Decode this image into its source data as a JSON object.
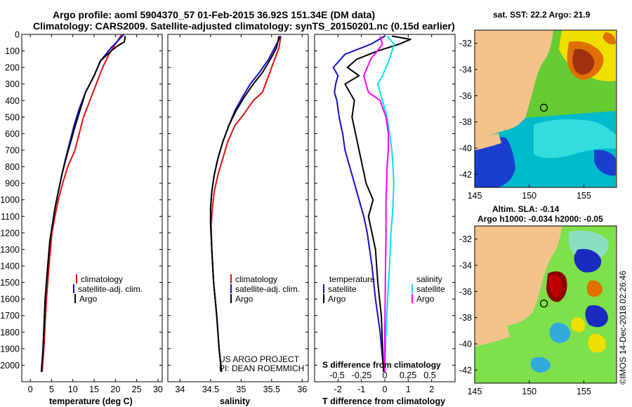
{
  "header": {
    "title1": "Argo profile: aoml 5904370_57 01-Feb-2015 36.92S 151.34E (DM data)",
    "title2": "Climatology: CARS2009. Satellite-adjusted climatology: synTS_20150201.nc (0.15d earlier)"
  },
  "colors": {
    "climatology": "#e01010",
    "satellite": "#1010d0",
    "argo": "#000000",
    "satellite_salinity": "#00e0f0",
    "argo_salinity": "#ff00ff",
    "land": "#f4c38c"
  },
  "panels": {
    "temperature": {
      "xlabel": "temperature (deg C)",
      "legend": [
        "climatology",
        "satellite-adj. clim.",
        "Argo"
      ]
    },
    "salinity": {
      "xlabel": "salinity",
      "legend": [
        "climatology",
        "satellite-adj. clim.",
        "Argo"
      ],
      "credit1": "US ARGO PROJECT",
      "credit2": "PI: DEAN ROEMMICH"
    },
    "difference": {
      "xlabel": "T difference from climatology",
      "top_xlabel": "S difference from climatology",
      "legend_t_title": "temperature",
      "legend_s_title": "salinity",
      "legend_t": [
        "satellite",
        "Argo"
      ],
      "legend_s": [
        "satellite",
        "Argo"
      ]
    },
    "sst_map": {
      "title": "sat. SST: 22.2 Argo: 21.9",
      "float_lon": 151.34,
      "float_lat": -36.92
    },
    "sla_map": {
      "title1": "Altim. SLA: -0.14",
      "title2": "Argo h1000: -0.034 h2000: -0.05",
      "float_lon": 151.34,
      "float_lat": -36.92
    },
    "footer": "©IMOS 14-Dec-2018 02:26:46"
  },
  "chart_data": [
    {
      "type": "line",
      "title": "",
      "xlabel": "temperature (deg C)",
      "ylabel": "",
      "xlim": [
        -2,
        31
      ],
      "ylim": [
        2100,
        0
      ],
      "xticks": [
        0,
        5,
        10,
        15,
        20,
        25,
        30
      ],
      "yticks": [
        0,
        100,
        200,
        300,
        400,
        500,
        600,
        700,
        800,
        900,
        1000,
        1100,
        1200,
        1300,
        1400,
        1500,
        1600,
        1700,
        1800,
        1900,
        2000
      ],
      "grid": false,
      "legend": "bottom-center",
      "series": [
        {
          "name": "climatology",
          "color": "#e01010",
          "x": [
            21.5,
            20,
            18.5,
            17,
            15.5,
            14,
            12.5,
            11.5,
            10.5,
            8.8,
            7.6,
            6.6,
            5.8,
            5.1,
            4.4,
            3.8,
            3.2,
            2.8
          ],
          "y": [
            0,
            60,
            120,
            200,
            300,
            400,
            500,
            600,
            700,
            800,
            900,
            1000,
            1100,
            1200,
            1400,
            1600,
            1900,
            2040
          ]
        },
        {
          "name": "satellite-adj. clim.",
          "color": "#1010d0",
          "x": [
            22,
            19,
            16.5,
            15,
            13,
            11.5,
            10.3,
            9.3,
            8.3,
            7.4,
            6.6,
            5.8,
            5.2,
            4.6,
            4.1,
            3.5,
            3,
            2.6
          ],
          "y": [
            0,
            80,
            160,
            250,
            350,
            450,
            550,
            650,
            750,
            850,
            950,
            1050,
            1150,
            1250,
            1400,
            1600,
            1900,
            2040
          ]
        },
        {
          "name": "Argo",
          "color": "#000000",
          "x": [
            22.3,
            22.1,
            20.5,
            19,
            16.5,
            15,
            13,
            11.8,
            10.6,
            9.5,
            8.4,
            7.4,
            6.6,
            5.8,
            5.2,
            4.6,
            4.1,
            3.5,
            3,
            2.6
          ],
          "y": [
            10,
            45,
            70,
            100,
            160,
            250,
            350,
            450,
            550,
            650,
            750,
            850,
            950,
            1050,
            1150,
            1250,
            1400,
            1600,
            1900,
            2040
          ]
        }
      ]
    },
    {
      "type": "line",
      "title": "",
      "xlabel": "salinity",
      "ylabel": "",
      "xlim": [
        33.8,
        36.1
      ],
      "ylim": [
        2100,
        0
      ],
      "xticks": [
        34,
        34.5,
        35,
        35.5,
        36
      ],
      "grid": false,
      "legend": "bottom-center",
      "series": [
        {
          "name": "climatology",
          "color": "#e01010",
          "x": [
            35.65,
            35.62,
            35.55,
            35.45,
            35.35,
            35.2,
            35.05,
            34.9,
            34.78,
            34.7,
            34.62,
            34.56,
            34.53,
            34.51,
            34.52,
            34.55,
            34.6,
            34.64,
            34.68
          ],
          "y": [
            10,
            80,
            150,
            250,
            350,
            400,
            480,
            550,
            650,
            750,
            850,
            950,
            1050,
            1150,
            1300,
            1500,
            1700,
            1900,
            2040
          ]
        },
        {
          "name": "satellite-adj. clim.",
          "color": "#1010d0",
          "x": [
            35.65,
            35.55,
            35.45,
            35.3,
            35.15,
            35.02,
            34.9,
            34.8,
            34.7,
            34.62,
            34.56,
            34.52,
            34.5,
            34.5,
            34.52,
            34.55,
            34.6,
            34.64,
            34.68
          ],
          "y": [
            10,
            80,
            150,
            230,
            300,
            380,
            460,
            550,
            650,
            750,
            850,
            950,
            1050,
            1150,
            1300,
            1500,
            1700,
            1900,
            2040
          ]
        },
        {
          "name": "Argo",
          "color": "#000000",
          "x": [
            35.62,
            35.58,
            35.48,
            35.35,
            35.2,
            35.05,
            34.92,
            34.8,
            34.7,
            34.62,
            34.56,
            34.52,
            34.5,
            34.5,
            34.52,
            34.55,
            34.6,
            34.64,
            34.68
          ],
          "y": [
            10,
            80,
            150,
            230,
            300,
            380,
            460,
            550,
            650,
            750,
            850,
            950,
            1050,
            1150,
            1300,
            1500,
            1700,
            1900,
            2040
          ]
        }
      ]
    },
    {
      "type": "line",
      "title": "",
      "xlabel": "T difference from climatology",
      "top_xlabel": "S difference from climatology",
      "ylabel": "",
      "xlim": [
        -3,
        3
      ],
      "ylim": [
        2100,
        0
      ],
      "xticks": [
        -2,
        -1,
        0,
        1,
        2
      ],
      "top_xticks": [
        "-0.5",
        "-0.25",
        "0",
        "0.25",
        "0.5"
      ],
      "grid": false,
      "legend": "bottom",
      "series": [
        {
          "name": "temperature satellite",
          "color": "#1010d0",
          "x": [
            0,
            -0.6,
            -1.7,
            -2.2,
            -2.0,
            -2.1,
            -2.15,
            -2.05,
            -1.95,
            -1.8,
            -1.7,
            -1.5,
            -1.3,
            -1.1,
            -0.9,
            -0.75,
            -0.55,
            -0.4,
            -0.2,
            -0.05
          ],
          "y": [
            10,
            60,
            120,
            200,
            250,
            300,
            350,
            400,
            500,
            600,
            700,
            800,
            900,
            1000,
            1100,
            1200,
            1400,
            1600,
            1800,
            2040
          ]
        },
        {
          "name": "temperature Argo",
          "color": "#000000",
          "x": [
            0.3,
            1.1,
            0.6,
            -0.3,
            -1.2,
            -1.6,
            -1.1,
            -1.7,
            -1.3,
            -1.4,
            -1.25,
            -1.1,
            -0.95,
            -0.8,
            -0.5,
            -0.7,
            -0.4,
            -0.3,
            -0.15,
            -0.05
          ],
          "y": [
            10,
            30,
            60,
            100,
            150,
            200,
            250,
            300,
            400,
            500,
            600,
            700,
            800,
            900,
            1000,
            1100,
            1300,
            1500,
            1700,
            2040
          ]
        },
        {
          "name": "salinity satellite",
          "color": "#00e0f0",
          "x": [
            0.1,
            0.4,
            0.2,
            -0.1,
            -0.3,
            -0.2,
            -0.1,
            0.1,
            0.2,
            0.3,
            0.35,
            0.38,
            0.36,
            0.32,
            0.26,
            0.2,
            0.12,
            0.05,
            0
          ],
          "y": [
            10,
            60,
            150,
            250,
            300,
            350,
            400,
            500,
            600,
            700,
            800,
            900,
            1000,
            1100,
            1200,
            1400,
            1600,
            1800,
            2040
          ]
        },
        {
          "name": "salinity Argo",
          "color": "#ff00ff",
          "x": [
            -0.2,
            -0.1,
            -0.6,
            -0.9,
            -0.8,
            -0.7,
            -0.2,
            0.05,
            0.15,
            0.15,
            0.1,
            0.05,
            0.05,
            0.02,
            0,
            0
          ],
          "y": [
            10,
            60,
            150,
            250,
            300,
            350,
            400,
            500,
            600,
            700,
            800,
            1000,
            1200,
            1500,
            1800,
            2040
          ]
        }
      ]
    },
    {
      "type": "heatmap",
      "title": "sat. SST: 22.2 Argo: 21.9",
      "xlim": [
        145,
        158
      ],
      "ylim": [
        -43,
        -31
      ],
      "xticks": [
        145,
        150,
        155
      ],
      "yticks": [
        -32,
        -34,
        -36,
        -38,
        -40,
        -42
      ],
      "marker": {
        "lon": 151.34,
        "lat": -36.92
      }
    },
    {
      "type": "heatmap",
      "title": "Altim. SLA: -0.14",
      "xlim": [
        145,
        158
      ],
      "ylim": [
        -43,
        -31
      ],
      "xticks": [
        145,
        150,
        155
      ],
      "yticks": [
        -32,
        -34,
        -36,
        -38,
        -40,
        -42
      ],
      "marker": {
        "lon": 151.34,
        "lat": -36.92
      }
    }
  ]
}
